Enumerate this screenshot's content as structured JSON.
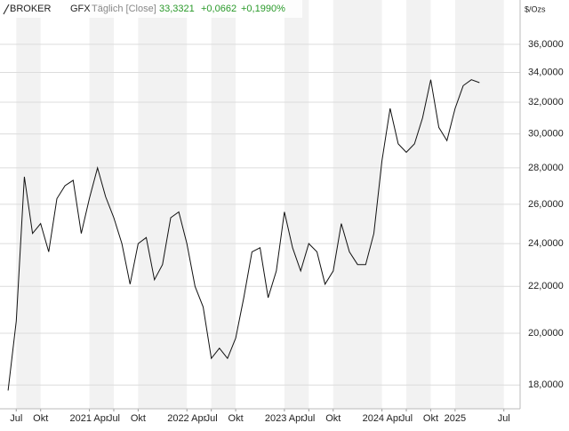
{
  "header": {
    "brand": "BROKER",
    "symbol": "GFX",
    "mode": "Täglich [Close]",
    "last": "33,3321",
    "change": "+0,0662",
    "change_pct": "+0,1990%"
  },
  "chart_data": {
    "type": "line",
    "unit": "$/Ozs",
    "color": "#111111",
    "log_y": true,
    "grid": true,
    "x": [
      "2020-06",
      "2020-07",
      "2020-08",
      "2020-09",
      "2020-10",
      "2020-11",
      "2020-12",
      "2021-01",
      "2021-02",
      "2021-03",
      "2021-04",
      "2021-05",
      "2021-06",
      "2021-07",
      "2021-08",
      "2021-09",
      "2021-10",
      "2021-11",
      "2021-12",
      "2022-01",
      "2022-02",
      "2022-03",
      "2022-04",
      "2022-05",
      "2022-06",
      "2022-07",
      "2022-08",
      "2022-09",
      "2022-10",
      "2022-11",
      "2022-12",
      "2023-01",
      "2023-02",
      "2023-03",
      "2023-04",
      "2023-05",
      "2023-06",
      "2023-07",
      "2023-08",
      "2023-09",
      "2023-10",
      "2023-11",
      "2023-12",
      "2024-01",
      "2024-02",
      "2024-03",
      "2024-04",
      "2024-05",
      "2024-06",
      "2024-07",
      "2024-08",
      "2024-09",
      "2024-10",
      "2024-11",
      "2024-12",
      "2025-01",
      "2025-02",
      "2025-03",
      "2025-04"
    ],
    "values": [
      17.8,
      20.5,
      27.5,
      24.5,
      25.0,
      23.6,
      26.3,
      27.0,
      27.3,
      24.5,
      26.3,
      28.0,
      26.4,
      25.3,
      24.0,
      22.1,
      24.0,
      24.3,
      22.3,
      23.0,
      25.3,
      25.6,
      24.0,
      22.0,
      21.1,
      19.0,
      19.4,
      19.0,
      19.8,
      21.5,
      23.6,
      23.8,
      21.5,
      22.7,
      25.6,
      23.8,
      22.7,
      24.0,
      23.6,
      22.1,
      22.7,
      25.0,
      23.6,
      23.0,
      23.0,
      24.5,
      28.4,
      31.6,
      29.4,
      28.9,
      29.4,
      31.0,
      33.5,
      30.4,
      29.6,
      31.6,
      33.1,
      33.5,
      33.3
    ],
    "xlim": [
      "2020-05",
      "2025-09"
    ],
    "xticks": [
      {
        "value": "2020-07",
        "label": "Jul"
      },
      {
        "value": "2020-10",
        "label": "Okt"
      },
      {
        "value": "2021-04",
        "label": "2021 Apr"
      },
      {
        "value": "2021-07",
        "label": "Jul"
      },
      {
        "value": "2021-10",
        "label": "Okt"
      },
      {
        "value": "2022-04",
        "label": "2022 Apr"
      },
      {
        "value": "2022-07",
        "label": "Jul"
      },
      {
        "value": "2022-10",
        "label": "Okt"
      },
      {
        "value": "2023-04",
        "label": "2023 Apr"
      },
      {
        "value": "2023-07",
        "label": "Jul"
      },
      {
        "value": "2023-10",
        "label": "Okt"
      },
      {
        "value": "2024-04",
        "label": "2024 Apr"
      },
      {
        "value": "2024-07",
        "label": "Jul"
      },
      {
        "value": "2024-10",
        "label": "Okt"
      },
      {
        "value": "2025-01",
        "label": "2025"
      },
      {
        "value": "2025-07",
        "label": "Jul"
      }
    ],
    "ylim": [
      17.15,
      39.4
    ],
    "yticks": [
      {
        "value": 18,
        "label": "18,0000"
      },
      {
        "value": 20,
        "label": "20,0000"
      },
      {
        "value": 22,
        "label": "22,0000"
      },
      {
        "value": 24,
        "label": "24,0000"
      },
      {
        "value": 26,
        "label": "26,0000"
      },
      {
        "value": 28,
        "label": "28,0000"
      },
      {
        "value": 30,
        "label": "30,0000"
      },
      {
        "value": 32,
        "label": "32,0000"
      },
      {
        "value": 34,
        "label": "34,0000"
      },
      {
        "value": 36,
        "label": "36,0000"
      }
    ]
  }
}
